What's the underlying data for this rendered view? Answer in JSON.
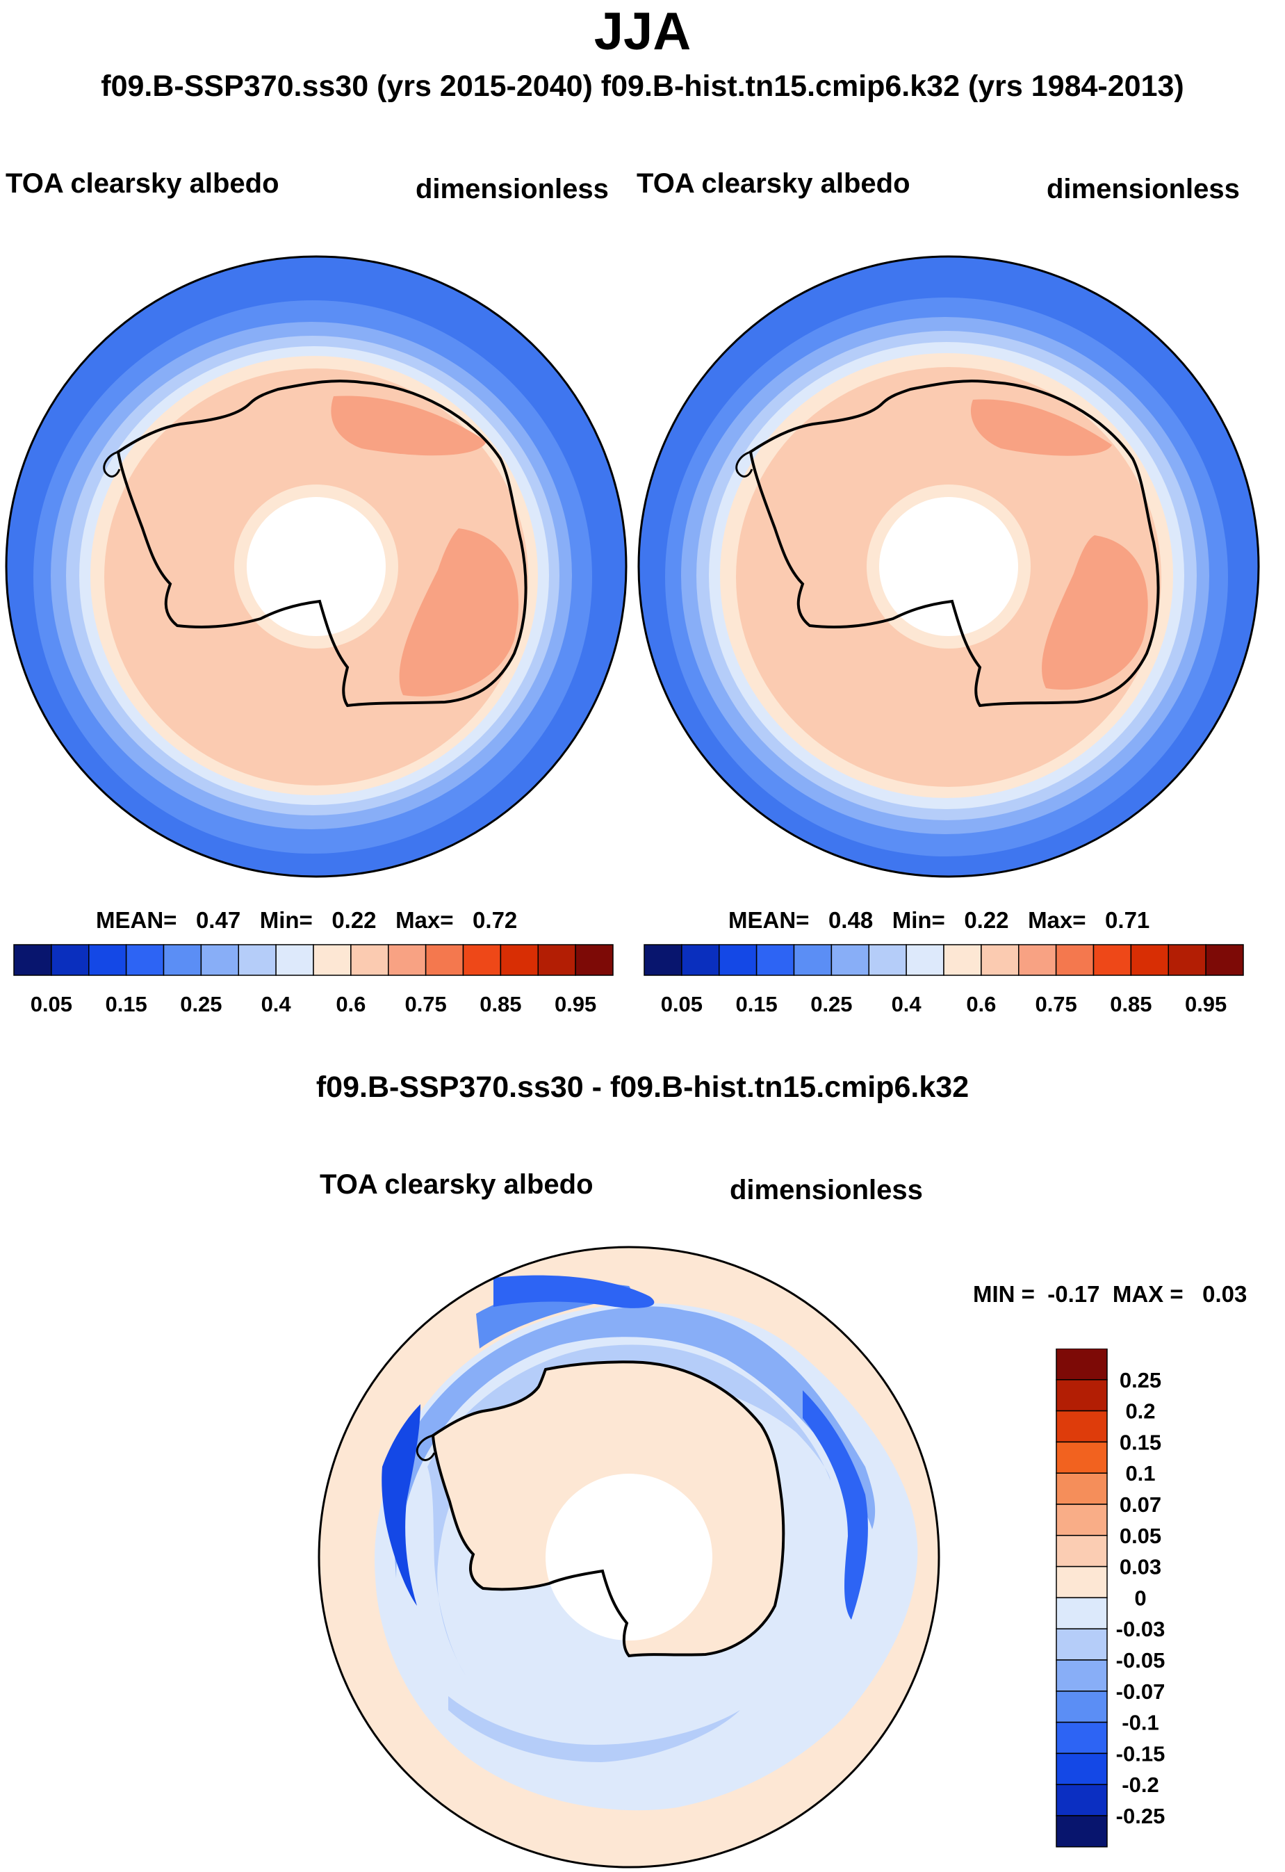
{
  "page": {
    "title": "JJA",
    "subtitle": "f09.B-SSP370.ss30 (yrs 2015-2040)  f09.B-hist.tn15.cmip6.k32 (yrs 1984-2013)",
    "diff_title": "f09.B-SSP370.ss30 - f09.B-hist.tn15.cmip6.k32"
  },
  "panels": [
    {
      "variable": "TOA clearsky albedo",
      "units": "dimensionless",
      "stats": {
        "mean_label": "MEAN=",
        "mean": "0.47",
        "min_label": "Min=",
        "min": "0.22",
        "max_label": "Max=",
        "max": "0.72"
      }
    },
    {
      "variable": "TOA clearsky albedo",
      "units": "dimensionless",
      "stats": {
        "mean_label": "MEAN=",
        "mean": "0.48",
        "min_label": "Min=",
        "min": "0.22",
        "max_label": "Max=",
        "max": "0.71"
      }
    },
    {
      "variable": "TOA clearsky albedo",
      "units": "dimensionless",
      "stats": {
        "min_label": "MIN =",
        "min": "-0.17",
        "max_label": "MAX =",
        "max": "0.03"
      }
    }
  ],
  "colorbar_main": {
    "colors": [
      "#08156e",
      "#0a2fbe",
      "#1448e6",
      "#2d64f4",
      "#5b8ef5",
      "#88aef7",
      "#b5cdf9",
      "#dde9fb",
      "#fde7d4",
      "#fbcbb1",
      "#f8a283",
      "#f4784e",
      "#ee4818",
      "#d82e04",
      "#b31e04",
      "#7d0a06"
    ],
    "tick_labels": [
      "0.05",
      "0.15",
      "0.25",
      "0.4",
      "0.6",
      "0.75",
      "0.85",
      "0.95"
    ]
  },
  "colorbar_diff": {
    "colors": [
      "#7d0a06",
      "#b31e04",
      "#de3c0b",
      "#f2621f",
      "#f58e5a",
      "#f9ad87",
      "#fbcdb3",
      "#fde7d4",
      "#dce9fb",
      "#b5cdf9",
      "#88aef7",
      "#5b8ef5",
      "#2d64f4",
      "#1448e6",
      "#0b2fc2",
      "#08156e"
    ],
    "tick_labels": [
      "0.25",
      "0.2",
      "0.15",
      "0.1",
      "0.07",
      "0.05",
      "0.03",
      "0",
      "-0.03",
      "-0.05",
      "-0.07",
      "-0.1",
      "-0.15",
      "-0.2",
      "-0.25"
    ]
  },
  "chart_data": [
    {
      "type": "heatmap",
      "title": "f09.B-SSP370.ss30 (yrs 2015-2040)",
      "variable": "TOA clearsky albedo",
      "units": "dimensionless",
      "projection": "south polar stereographic",
      "season": "JJA",
      "mean": 0.47,
      "min": 0.22,
      "max": 0.72,
      "levels": [
        0.05,
        0.1,
        0.15,
        0.2,
        0.25,
        0.3,
        0.35,
        0.4,
        0.5,
        0.6,
        0.7,
        0.75,
        0.8,
        0.85,
        0.9,
        0.95
      ]
    },
    {
      "type": "heatmap",
      "title": "f09.B-hist.tn15.cmip6.k32 (yrs 1984-2013)",
      "variable": "TOA clearsky albedo",
      "units": "dimensionless",
      "projection": "south polar stereographic",
      "season": "JJA",
      "mean": 0.48,
      "min": 0.22,
      "max": 0.71,
      "levels": [
        0.05,
        0.1,
        0.15,
        0.2,
        0.25,
        0.3,
        0.35,
        0.4,
        0.5,
        0.6,
        0.7,
        0.75,
        0.8,
        0.85,
        0.9,
        0.95
      ]
    },
    {
      "type": "heatmap",
      "title": "f09.B-SSP370.ss30 - f09.B-hist.tn15.cmip6.k32",
      "variable": "TOA clearsky albedo",
      "units": "dimensionless",
      "projection": "south polar stereographic",
      "season": "JJA",
      "min": -0.17,
      "max": 0.03,
      "levels": [
        -0.25,
        -0.2,
        -0.15,
        -0.1,
        -0.07,
        -0.05,
        -0.03,
        0,
        0.03,
        0.05,
        0.07,
        0.1,
        0.15,
        0.2,
        0.25
      ]
    }
  ]
}
